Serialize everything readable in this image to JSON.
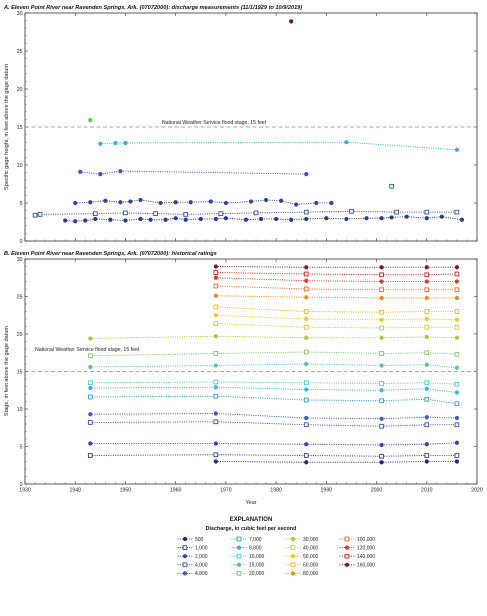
{
  "chart_data": [
    {
      "type": "scatter",
      "panel": "A",
      "title": "A. Eleven Point River near Ravenden Springs, Ark. (07072000): discharge measurements (11/1/1929 to 10/9/2019)",
      "xlabel": "",
      "ylabel": "Specific gage height, in feet above the gage datum",
      "xlim": [
        1930,
        2020
      ],
      "ylim": [
        0,
        30
      ],
      "yticks": [
        0,
        5,
        10,
        15,
        20,
        25,
        30
      ],
      "grid": false,
      "reference_line": {
        "y": 15,
        "label": "National Weather Service flood stage, 15 feet"
      },
      "series": [
        {
          "name": "500",
          "color": "#283a8e",
          "marker": "circle",
          "x": [
            1938,
            1940,
            1942,
            1944,
            1947,
            1950,
            1953,
            1955,
            1958,
            1960,
            1962,
            1965,
            1968,
            1970,
            1974,
            1977,
            1980,
            1983,
            1986,
            1990,
            1994,
            1998,
            2001,
            2003,
            2006,
            2010,
            2013,
            2017
          ],
          "y": [
            2.7,
            2.6,
            2.7,
            2.9,
            2.8,
            2.7,
            2.9,
            2.8,
            2.8,
            3.0,
            2.8,
            2.9,
            2.9,
            3.0,
            2.8,
            2.9,
            2.9,
            2.8,
            2.9,
            3.0,
            2.9,
            3.0,
            3.0,
            3.1,
            3.2,
            3.0,
            3.2,
            2.8
          ]
        },
        {
          "name": "1,000",
          "color": "#3b4aa0",
          "marker": "square",
          "x": [
            1932,
            1933,
            1944,
            1950,
            1956,
            1962,
            1969,
            1976,
            1986,
            1995,
            2004,
            2010,
            2016
          ],
          "y": [
            3.4,
            3.5,
            3.6,
            3.7,
            3.6,
            3.5,
            3.6,
            3.7,
            3.8,
            3.9,
            3.8,
            3.8,
            3.8
          ]
        },
        {
          "name": "2,000",
          "color": "#2e4596",
          "marker": "circle",
          "x": [
            1940,
            1943,
            1946,
            1949,
            1951,
            1953,
            1957,
            1960,
            1963,
            1967,
            1970,
            1975,
            1978,
            1981,
            1984,
            1988,
            1991
          ],
          "y": [
            5.0,
            5.1,
            5.3,
            5.1,
            5.2,
            5.4,
            5.0,
            5.1,
            5.1,
            5.2,
            5.0,
            5.2,
            5.4,
            5.3,
            4.8,
            5.0,
            5.0
          ]
        },
        {
          "name": "4,000",
          "color": "#3a56b0",
          "marker": "circle",
          "x": [
            1941,
            1945,
            1949,
            1986
          ],
          "y": [
            9.1,
            8.8,
            9.2,
            8.8
          ]
        },
        {
          "name": "10,000",
          "color": "#3aaede",
          "marker": "circle",
          "x": [
            1945,
            1948,
            1950,
            1994,
            2016
          ],
          "y": [
            12.8,
            12.9,
            12.9,
            13.0,
            12.0
          ]
        },
        {
          "name": "15,000",
          "color": "#2456c6",
          "marker": "square",
          "x": [
            2003
          ],
          "y": [
            7.2
          ]
        },
        {
          "name": "20,000",
          "color": "#5cc45a",
          "marker": "circle",
          "x": [
            1943
          ],
          "y": [
            15.9
          ]
        },
        {
          "name": "160,000",
          "color": "#7a1414",
          "marker": "circle",
          "x": [
            1983
          ],
          "y": [
            28.9
          ]
        }
      ]
    },
    {
      "type": "line",
      "panel": "B",
      "title": "B. Eleven Point River near Ravenden Springs, Ark. (07072000): historical ratings",
      "xlabel": "Year",
      "ylabel": "Stage, in feet above the gage datum",
      "xlim": [
        1930,
        2020
      ],
      "ylim": [
        0,
        30
      ],
      "xticks": [
        1930,
        1940,
        1950,
        1960,
        1970,
        1980,
        1990,
        2000,
        2010,
        2020
      ],
      "yticks": [
        0,
        5,
        10,
        15,
        20,
        25,
        30
      ],
      "grid": false,
      "reference_line": {
        "y": 15,
        "label": "National Weather Service flood stage, 15 feet"
      },
      "series": [
        {
          "name": "500",
          "color": "#1e2c78",
          "marker": "circle",
          "x": [
            1968,
            1986,
            2001,
            2010,
            2016
          ],
          "y": [
            3.0,
            2.9,
            2.9,
            3.0,
            3.0
          ]
        },
        {
          "name": "1,000",
          "color": "#2b3d92",
          "marker": "square",
          "x": [
            1943,
            1968,
            1986,
            2001,
            2010,
            2016
          ],
          "y": [
            3.8,
            3.9,
            3.8,
            3.7,
            3.8,
            3.8
          ]
        },
        {
          "name": "2,000",
          "color": "#2e47a2",
          "marker": "circle",
          "x": [
            1943,
            1968,
            1986,
            2001,
            2010,
            2016
          ],
          "y": [
            5.4,
            5.4,
            5.3,
            5.2,
            5.3,
            5.5
          ]
        },
        {
          "name": "4,000",
          "color": "#3552b0",
          "marker": "square",
          "x": [
            1943,
            1968,
            1986,
            2001,
            2010,
            2016
          ],
          "y": [
            8.2,
            8.3,
            7.9,
            7.7,
            7.9,
            7.9
          ]
        },
        {
          "name": "4,800",
          "color": "#3a5cbc",
          "marker": "circle",
          "x": [
            1943,
            1968,
            1986,
            2001,
            2010,
            2016
          ],
          "y": [
            9.3,
            9.4,
            8.8,
            8.7,
            8.9,
            8.8
          ]
        },
        {
          "name": "7,000",
          "color": "#2f9ad4",
          "marker": "square",
          "x": [
            1943,
            1968,
            1986,
            2001,
            2010,
            2016
          ],
          "y": [
            11.6,
            11.7,
            11.2,
            11.1,
            11.3,
            10.7
          ]
        },
        {
          "name": "8,800",
          "color": "#3cb2dc",
          "marker": "circle",
          "x": [
            1943,
            1968,
            1986,
            2001,
            2010,
            2016
          ],
          "y": [
            12.8,
            12.9,
            12.6,
            12.5,
            12.7,
            12.2
          ]
        },
        {
          "name": "10,000",
          "color": "#52c4d6",
          "marker": "square",
          "x": [
            1943,
            1968,
            1986,
            2001,
            2010,
            2016
          ],
          "y": [
            13.5,
            13.6,
            13.5,
            13.4,
            13.5,
            13.3
          ]
        },
        {
          "name": "15,000",
          "color": "#5cc29a",
          "marker": "circle",
          "x": [
            1943,
            1968,
            1986,
            2001,
            2010,
            2016
          ],
          "y": [
            15.6,
            15.8,
            16.0,
            15.8,
            15.9,
            15.5
          ]
        },
        {
          "name": "20,000",
          "color": "#7ec85e",
          "marker": "square",
          "x": [
            1943,
            1968,
            1986,
            2001,
            2010,
            2016
          ],
          "y": [
            17.1,
            17.4,
            17.6,
            17.4,
            17.5,
            17.3
          ]
        },
        {
          "name": "30,000",
          "color": "#a8c83a",
          "marker": "circle",
          "x": [
            1943,
            1968,
            1986,
            2001,
            2010,
            2016
          ],
          "y": [
            19.4,
            19.7,
            19.5,
            19.5,
            19.6,
            19.5
          ]
        },
        {
          "name": "40,000",
          "color": "#d4cc22",
          "marker": "square",
          "x": [
            1968,
            1986,
            2001,
            2010,
            2016
          ],
          "y": [
            21.4,
            20.9,
            20.8,
            20.9,
            20.9
          ]
        },
        {
          "name": "50,000",
          "color": "#f2c81c",
          "marker": "circle",
          "x": [
            1968,
            1986,
            2001,
            2010,
            2016
          ],
          "y": [
            22.5,
            22.0,
            21.9,
            22.0,
            21.9
          ]
        },
        {
          "name": "60,000",
          "color": "#f6b31a",
          "marker": "square",
          "x": [
            1968,
            1986,
            2001,
            2010,
            2016
          ],
          "y": [
            23.6,
            23.0,
            22.9,
            23.0,
            23.0
          ]
        },
        {
          "name": "80,000",
          "color": "#f08a1e",
          "marker": "circle",
          "x": [
            1968,
            1986,
            2001,
            2010,
            2016
          ],
          "y": [
            25.1,
            24.9,
            24.8,
            24.8,
            24.8
          ]
        },
        {
          "name": "100,000",
          "color": "#e96424",
          "marker": "square",
          "x": [
            1968,
            1986,
            2001,
            2010,
            2016
          ],
          "y": [
            26.4,
            26.0,
            25.9,
            25.9,
            25.9
          ]
        },
        {
          "name": "120,000",
          "color": "#dc3a24",
          "marker": "circle",
          "x": [
            1968,
            1986,
            2001,
            2010,
            2016
          ],
          "y": [
            27.5,
            27.1,
            27.0,
            27.0,
            27.0
          ]
        },
        {
          "name": "140,000",
          "color": "#c22622",
          "marker": "square",
          "x": [
            1968,
            1986,
            2001,
            2010,
            2016
          ],
          "y": [
            28.2,
            28.0,
            27.9,
            27.9,
            28.0
          ]
        },
        {
          "name": "160,000",
          "color": "#7e1a18",
          "marker": "circle",
          "x": [
            1968,
            1986,
            2001,
            2010,
            2016
          ],
          "y": [
            29.0,
            28.9,
            28.9,
            28.9,
            28.9
          ]
        }
      ]
    }
  ],
  "legend": {
    "title": "EXPLANATION",
    "subtitle": "Discharge, in cubic feet per second",
    "entries": [
      {
        "label": "500",
        "color": "#1e2c78",
        "marker": "circle"
      },
      {
        "label": "1,000",
        "color": "#2b3d92",
        "marker": "square"
      },
      {
        "label": "2,000",
        "color": "#2e47a2",
        "marker": "circle"
      },
      {
        "label": "4,000",
        "color": "#3552b0",
        "marker": "square"
      },
      {
        "label": "4,800",
        "color": "#3a5cbc",
        "marker": "circle"
      },
      {
        "label": "7,000",
        "color": "#2f9ad4",
        "marker": "square"
      },
      {
        "label": "8,800",
        "color": "#3cb2dc",
        "marker": "circle"
      },
      {
        "label": "10,000",
        "color": "#52c4d6",
        "marker": "square"
      },
      {
        "label": "15,000",
        "color": "#5cc29a",
        "marker": "circle"
      },
      {
        "label": "20,000",
        "color": "#7ec85e",
        "marker": "square"
      },
      {
        "label": "30,000",
        "color": "#a8c83a",
        "marker": "circle"
      },
      {
        "label": "40,000",
        "color": "#d4cc22",
        "marker": "square"
      },
      {
        "label": "50,000",
        "color": "#f2c81c",
        "marker": "circle"
      },
      {
        "label": "60,000",
        "color": "#f6b31a",
        "marker": "square"
      },
      {
        "label": "80,000",
        "color": "#f08a1e",
        "marker": "circle"
      },
      {
        "label": "100,000",
        "color": "#e96424",
        "marker": "square"
      },
      {
        "label": "120,000",
        "color": "#dc3a24",
        "marker": "circle"
      },
      {
        "label": "140,000",
        "color": "#c22622",
        "marker": "square"
      },
      {
        "label": "160,000",
        "color": "#7e1a18",
        "marker": "circle"
      }
    ]
  }
}
